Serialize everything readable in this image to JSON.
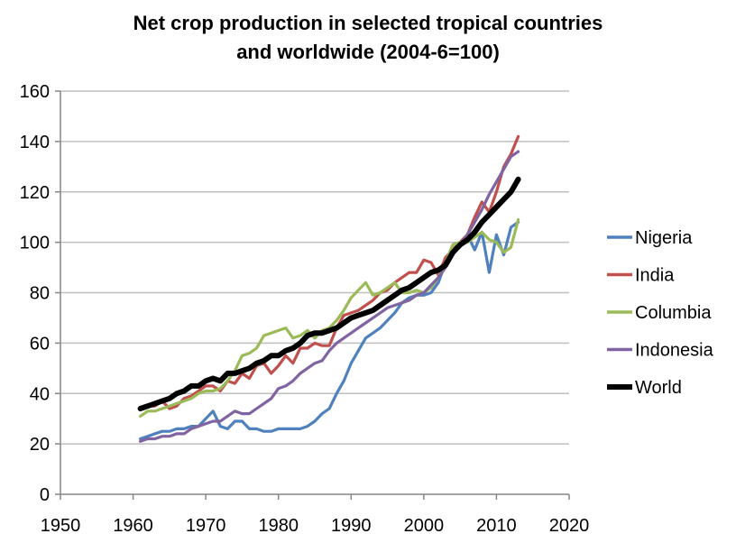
{
  "chart_data": {
    "type": "line",
    "title_line1": "Net crop production in selected tropical countries",
    "title_line2": "and worldwide (2004-6=100)",
    "xlabel": "",
    "ylabel": "",
    "xlim": [
      1950,
      2020
    ],
    "ylim": [
      0,
      160
    ],
    "xticks": [
      1950,
      1960,
      1970,
      1980,
      1990,
      2000,
      2010,
      2020
    ],
    "yticks": [
      0,
      20,
      40,
      60,
      80,
      100,
      120,
      140,
      160
    ],
    "grid": "horizontal",
    "legend_position": "right",
    "series": [
      {
        "name": "Nigeria",
        "color": "#4F81BD",
        "x": [
          1961,
          1962,
          1963,
          1964,
          1965,
          1966,
          1967,
          1968,
          1969,
          1970,
          1971,
          1972,
          1973,
          1974,
          1975,
          1976,
          1977,
          1978,
          1979,
          1980,
          1981,
          1982,
          1983,
          1984,
          1985,
          1986,
          1987,
          1988,
          1989,
          1990,
          1991,
          1992,
          1993,
          1994,
          1995,
          1996,
          1997,
          1998,
          1999,
          2000,
          2001,
          2002,
          2003,
          2004,
          2005,
          2006,
          2007,
          2008,
          2009,
          2010,
          2011,
          2012,
          2013
        ],
        "values": [
          22,
          23,
          24,
          25,
          25,
          26,
          26,
          27,
          27,
          30,
          33,
          27,
          26,
          29,
          29,
          26,
          26,
          25,
          25,
          26,
          26,
          26,
          26,
          27,
          29,
          32,
          34,
          40,
          45,
          52,
          57,
          62,
          64,
          66,
          69,
          72,
          76,
          78,
          79,
          79,
          80,
          84,
          92,
          99,
          100,
          103,
          97,
          104,
          88,
          103,
          95,
          106,
          108
        ]
      },
      {
        "name": "India",
        "color": "#C0504D",
        "x": [
          1961,
          1962,
          1963,
          1964,
          1965,
          1966,
          1967,
          1968,
          1969,
          1970,
          1971,
          1972,
          1973,
          1974,
          1975,
          1976,
          1977,
          1978,
          1979,
          1980,
          1981,
          1982,
          1983,
          1984,
          1985,
          1986,
          1987,
          1988,
          1989,
          1990,
          1991,
          1992,
          1993,
          1994,
          1995,
          1996,
          1997,
          1998,
          1999,
          2000,
          2001,
          2002,
          2003,
          2004,
          2005,
          2006,
          2007,
          2008,
          2009,
          2010,
          2011,
          2012,
          2013
        ],
        "values": [
          34,
          35,
          35,
          37,
          34,
          35,
          38,
          39,
          41,
          43,
          43,
          41,
          45,
          44,
          48,
          46,
          51,
          52,
          48,
          51,
          55,
          52,
          58,
          58,
          60,
          59,
          59,
          66,
          71,
          72,
          73,
          75,
          77,
          80,
          81,
          84,
          86,
          88,
          88,
          93,
          92,
          87,
          94,
          97,
          100,
          103,
          110,
          116,
          112,
          120,
          130,
          135,
          142
        ]
      },
      {
        "name": "Columbia",
        "color": "#9BBB59",
        "x": [
          1961,
          1962,
          1963,
          1964,
          1965,
          1966,
          1967,
          1968,
          1969,
          1970,
          1971,
          1972,
          1973,
          1974,
          1975,
          1976,
          1977,
          1978,
          1979,
          1980,
          1981,
          1982,
          1983,
          1984,
          1985,
          1986,
          1987,
          1988,
          1989,
          1990,
          1991,
          1992,
          1993,
          1994,
          1995,
          1996,
          1997,
          1998,
          1999,
          2000,
          2001,
          2002,
          2003,
          2004,
          2005,
          2006,
          2007,
          2008,
          2009,
          2010,
          2011,
          2012,
          2013
        ],
        "values": [
          31,
          33,
          33,
          34,
          35,
          36,
          37,
          38,
          40,
          41,
          41,
          42,
          45,
          49,
          55,
          56,
          58,
          63,
          64,
          65,
          66,
          62,
          63,
          65,
          62,
          65,
          66,
          69,
          73,
          78,
          81,
          84,
          79,
          80,
          82,
          84,
          80,
          80,
          81,
          80,
          82,
          86,
          92,
          99,
          100,
          100,
          102,
          104,
          101,
          100,
          96,
          98,
          109
        ]
      },
      {
        "name": "Indonesia",
        "color": "#8064A2",
        "x": [
          1961,
          1962,
          1963,
          1964,
          1965,
          1966,
          1967,
          1968,
          1969,
          1970,
          1971,
          1972,
          1973,
          1974,
          1975,
          1976,
          1977,
          1978,
          1979,
          1980,
          1981,
          1982,
          1983,
          1984,
          1985,
          1986,
          1987,
          1988,
          1989,
          1990,
          1991,
          1992,
          1993,
          1994,
          1995,
          1996,
          1997,
          1998,
          1999,
          2000,
          2001,
          2002,
          2003,
          2004,
          2005,
          2006,
          2007,
          2008,
          2009,
          2010,
          2011,
          2012,
          2013
        ],
        "values": [
          21,
          22,
          22,
          23,
          23,
          24,
          24,
          26,
          27,
          28,
          29,
          29,
          31,
          33,
          32,
          32,
          34,
          36,
          38,
          42,
          43,
          45,
          48,
          50,
          52,
          53,
          57,
          60,
          62,
          64,
          66,
          68,
          70,
          72,
          74,
          75,
          76,
          77,
          79,
          80,
          83,
          86,
          90,
          95,
          99,
          103,
          108,
          113,
          119,
          124,
          129,
          134,
          136
        ]
      },
      {
        "name": "World",
        "color": "#000000",
        "x": [
          1961,
          1962,
          1963,
          1964,
          1965,
          1966,
          1967,
          1968,
          1969,
          1970,
          1971,
          1972,
          1973,
          1974,
          1975,
          1976,
          1977,
          1978,
          1979,
          1980,
          1981,
          1982,
          1983,
          1984,
          1985,
          1986,
          1987,
          1988,
          1989,
          1990,
          1991,
          1992,
          1993,
          1994,
          1995,
          1996,
          1997,
          1998,
          1999,
          2000,
          2001,
          2002,
          2003,
          2004,
          2005,
          2006,
          2007,
          2008,
          2009,
          2010,
          2011,
          2012,
          2013
        ],
        "values": [
          34,
          35,
          36,
          37,
          38,
          40,
          41,
          43,
          43,
          45,
          46,
          45,
          48,
          48,
          49,
          50,
          52,
          53,
          55,
          55,
          57,
          58,
          60,
          63,
          64,
          64,
          65,
          66,
          68,
          70,
          71,
          72,
          73,
          75,
          77,
          79,
          81,
          82,
          84,
          86,
          88,
          89,
          91,
          96,
          99,
          101,
          104,
          108,
          111,
          114,
          117,
          120,
          125
        ]
      }
    ]
  }
}
